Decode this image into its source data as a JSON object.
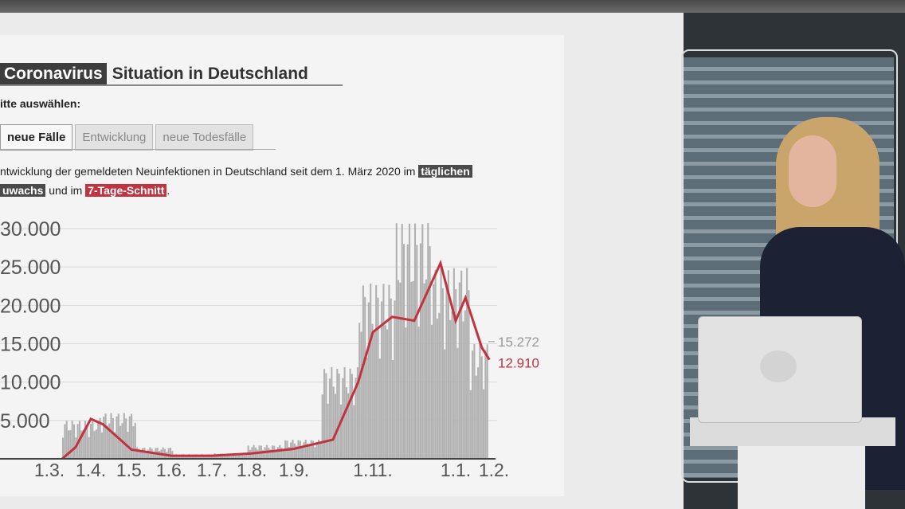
{
  "header": {
    "tag": "Coronavirus",
    "title": "Situation in Deutschland",
    "choose": "itte auswählen:"
  },
  "tabs": [
    {
      "label": "neue Fälle",
      "active": true
    },
    {
      "label": "Entwicklung",
      "active": false
    },
    {
      "label": "neue Todesfälle",
      "active": false
    }
  ],
  "description": {
    "part1": "ntwicklung der gemeldeten Neuinfektionen in Deutschland seit dem 1. März 2020 im ",
    "hl1": "täglichen",
    "hl2": "uwachs",
    "part2": " und im ",
    "hl3": "7-Tage-Schnitt",
    "part3": "."
  },
  "colors": {
    "bars": "#b1b1b1",
    "avg_line": "#c2323f",
    "grid": "#d9d9d9",
    "accent_dark": "#4a4a4a"
  },
  "chart_data": {
    "type": "bar",
    "title": "",
    "xlabel": "",
    "ylabel": "",
    "ylim": [
      0,
      30000
    ],
    "yticks": [
      0,
      5000,
      10000,
      15000,
      20000,
      25000,
      30000
    ],
    "ytick_labels": [
      "",
      "5.000",
      "10.000",
      "15.000",
      "20.000",
      "25.000",
      "30.000"
    ],
    "xtick_labels": [
      "1.3.",
      "1.4.",
      "1.5.",
      "1.6.",
      "1.7.",
      "1.8.",
      "1.9.",
      "1.11.",
      "1.1.",
      "1.2."
    ],
    "daily_peak_months": [
      {
        "month": "Mar",
        "value": 5000
      },
      {
        "month": "Apr",
        "value": 6000
      },
      {
        "month": "May",
        "value": 1500
      },
      {
        "month": "Jun",
        "value": 600
      },
      {
        "month": "Jul",
        "value": 700
      },
      {
        "month": "Aug",
        "value": 1800
      },
      {
        "month": "Sep",
        "value": 2500
      },
      {
        "month": "Oct",
        "value": 12000
      },
      {
        "month": "Nov",
        "value": 23000
      },
      {
        "month": "Dec",
        "value": 31000
      },
      {
        "month": "Jan",
        "value": 25000
      },
      {
        "month": "Feb",
        "value": 15272
      }
    ],
    "avg_series": {
      "name": "7-Tage-Schnitt",
      "points": [
        {
          "x": "1.3.",
          "y": 0
        },
        {
          "x": "15.3.",
          "y": 1500
        },
        {
          "x": "1.4.",
          "y": 5200
        },
        {
          "x": "10.4.",
          "y": 4500
        },
        {
          "x": "1.5.",
          "y": 1200
        },
        {
          "x": "1.6.",
          "y": 400
        },
        {
          "x": "1.7.",
          "y": 400
        },
        {
          "x": "1.8.",
          "y": 700
        },
        {
          "x": "1.9.",
          "y": 1300
        },
        {
          "x": "1.10.",
          "y": 2500
        },
        {
          "x": "20.10.",
          "y": 10000
        },
        {
          "x": "1.11.",
          "y": 16500
        },
        {
          "x": "15.11.",
          "y": 18500
        },
        {
          "x": "1.12.",
          "y": 18000
        },
        {
          "x": "20.12.",
          "y": 25500
        },
        {
          "x": "1.1.",
          "y": 18000
        },
        {
          "x": "10.1.",
          "y": 21000
        },
        {
          "x": "25.1.",
          "y": 14500
        },
        {
          "x": "2.2.",
          "y": 12910
        }
      ]
    },
    "end_labels": {
      "daily": "15.272",
      "avg": "12.910"
    },
    "grid": true
  }
}
